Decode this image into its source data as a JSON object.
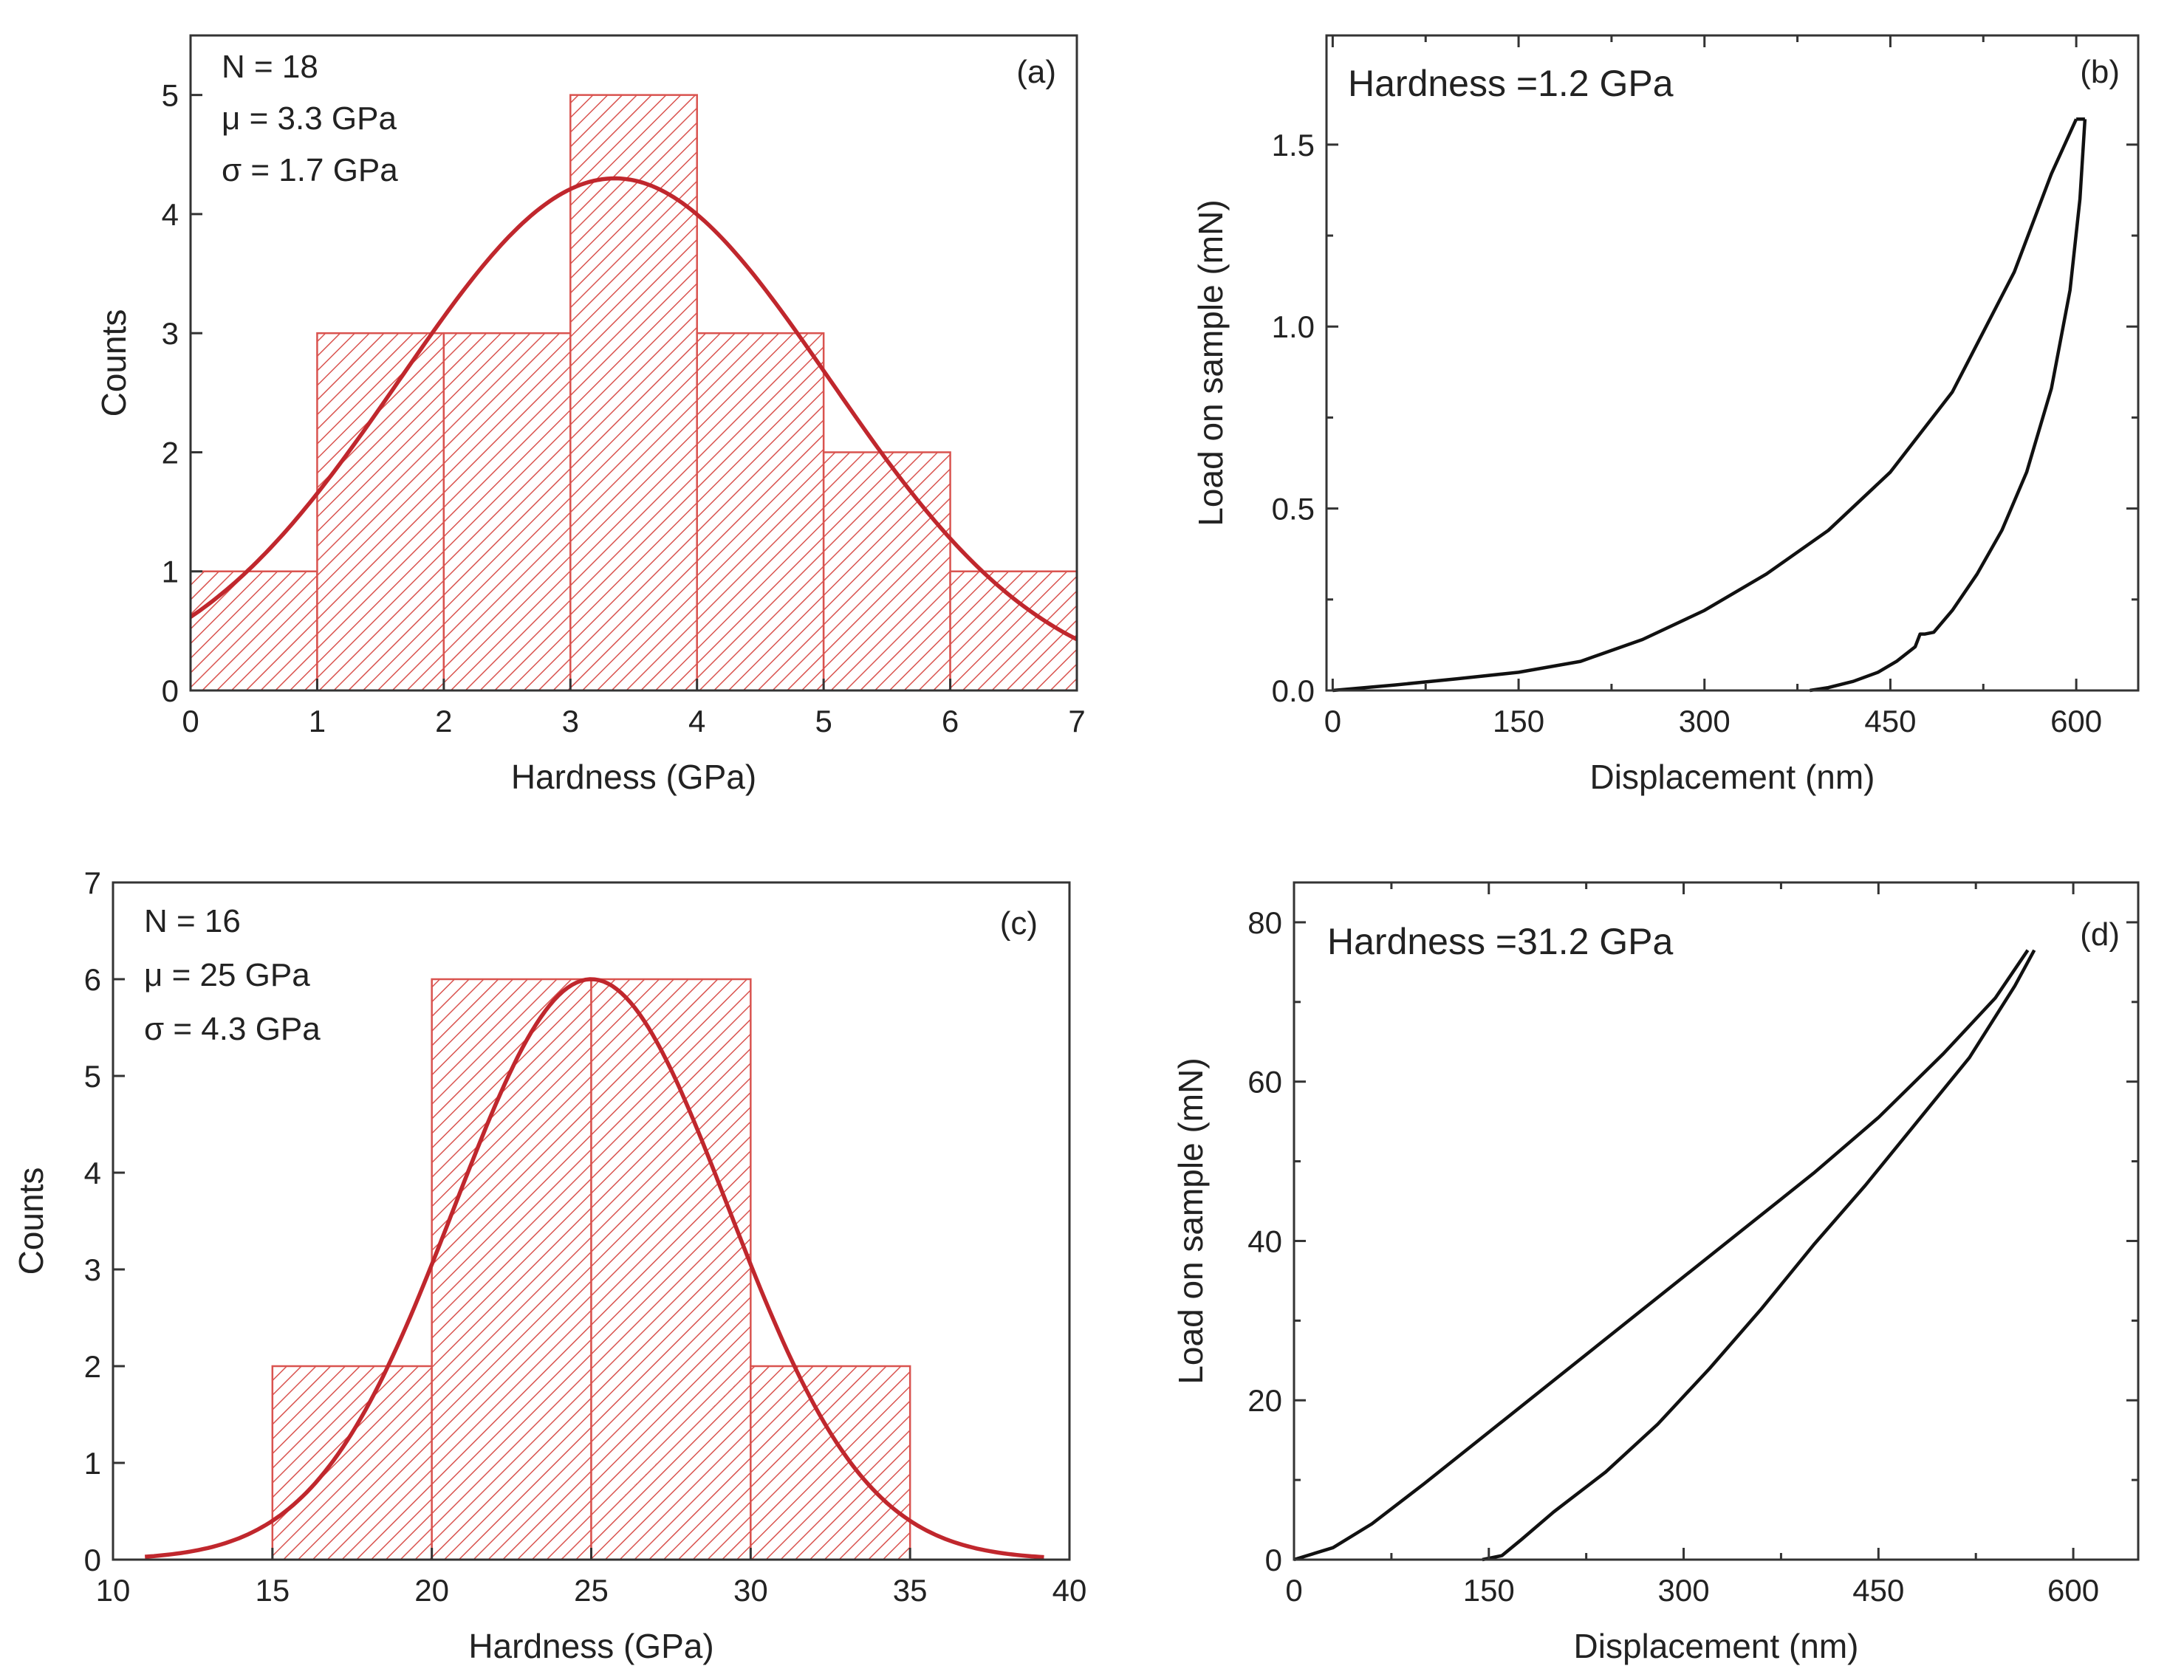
{
  "chart_data": [
    {
      "type": "bar",
      "panel": "(a)",
      "xlabel": "Hardness (GPa)",
      "ylabel": "Counts",
      "xlim": [
        0,
        7
      ],
      "ylim": [
        0,
        5.5
      ],
      "xticks": [
        0,
        1,
        2,
        3,
        4,
        5,
        6,
        7
      ],
      "yticks": [
        0,
        1,
        2,
        3,
        4,
        5
      ],
      "bins": [
        {
          "from": 0,
          "to": 1,
          "count": 1
        },
        {
          "from": 1,
          "to": 2,
          "count": 3
        },
        {
          "from": 2,
          "to": 3,
          "count": 3
        },
        {
          "from": 3,
          "to": 4,
          "count": 5
        },
        {
          "from": 4,
          "to": 5,
          "count": 3
        },
        {
          "from": 5,
          "to": 6,
          "count": 2
        },
        {
          "from": 6,
          "to": 7,
          "count": 1
        }
      ],
      "fit": {
        "type": "gaussian",
        "mean": 3.35,
        "sigma": 1.7,
        "peak": 4.3,
        "x_range": [
          0,
          7
        ]
      },
      "annotations": [
        "N = 18",
        "μ = 3.3 GPa",
        "σ = 1.7 GPa"
      ],
      "bar_color": "#d9534f",
      "fit_color": "#c0272d"
    },
    {
      "type": "line",
      "panel": "(b)",
      "title": "Hardness =1.2 GPa",
      "xlabel": "Displacement (nm)",
      "ylabel": "Load on sample (mN)",
      "xlim": [
        -5,
        650
      ],
      "ylim": [
        0,
        1.8
      ],
      "xticks": [
        0,
        150,
        300,
        450,
        600
      ],
      "yticks": [
        "0.0",
        "0.5",
        "1.0",
        "1.5"
      ],
      "series": [
        {
          "name": "loading",
          "x": [
            0,
            50,
            100,
            150,
            200,
            250,
            300,
            350,
            400,
            450,
            500,
            550,
            580,
            600
          ],
          "y": [
            0,
            0.015,
            0.032,
            0.05,
            0.08,
            0.14,
            0.22,
            0.32,
            0.44,
            0.6,
            0.82,
            1.15,
            1.42,
            1.57
          ]
        },
        {
          "name": "hold",
          "x": [
            600,
            607
          ],
          "y": [
            1.57,
            1.57
          ]
        },
        {
          "name": "unloading",
          "x": [
            607,
            603,
            595,
            580,
            560,
            540,
            520,
            500,
            485,
            478,
            474,
            470,
            455,
            440,
            420,
            400,
            385
          ],
          "y": [
            1.57,
            1.35,
            1.1,
            0.83,
            0.6,
            0.44,
            0.32,
            0.22,
            0.16,
            0.155,
            0.155,
            0.12,
            0.08,
            0.05,
            0.025,
            0.008,
            0
          ]
        }
      ]
    },
    {
      "type": "bar",
      "panel": "(c)",
      "xlabel": "Hardness (GPa)",
      "ylabel": "Counts",
      "xlim": [
        10,
        40
      ],
      "ylim": [
        0,
        7
      ],
      "xticks": [
        10,
        15,
        20,
        25,
        30,
        35,
        40
      ],
      "yticks": [
        0,
        1,
        2,
        3,
        4,
        5,
        6,
        7
      ],
      "bins": [
        {
          "from": 15,
          "to": 20,
          "count": 2
        },
        {
          "from": 20,
          "to": 25,
          "count": 6
        },
        {
          "from": 25,
          "to": 30,
          "count": 6
        },
        {
          "from": 30,
          "to": 35,
          "count": 2
        }
      ],
      "fit": {
        "type": "gaussian",
        "mean": 25,
        "sigma": 4.3,
        "peak": 6.0,
        "x_range": [
          11,
          39.2
        ]
      },
      "annotations": [
        "N = 16",
        "μ = 25 GPa",
        "σ = 4.3 GPa"
      ],
      "bar_color": "#d9534f",
      "fit_color": "#c0272d"
    },
    {
      "type": "line",
      "panel": "(d)",
      "title": "Hardness =31.2 GPa",
      "xlabel": "Displacement (nm)",
      "ylabel": "Load on sample (mN)",
      "xlim": [
        0,
        650
      ],
      "ylim": [
        0,
        85
      ],
      "xticks": [
        0,
        150,
        300,
        450,
        600
      ],
      "yticks": [
        0,
        20,
        40,
        60,
        80
      ],
      "series": [
        {
          "name": "loading",
          "x": [
            0,
            30,
            60,
            100,
            150,
            200,
            250,
            300,
            350,
            400,
            450,
            500,
            540,
            565
          ],
          "y": [
            0,
            1.5,
            4.5,
            9.5,
            16,
            22.5,
            29,
            35.5,
            42,
            48.5,
            55.5,
            63.5,
            70.5,
            76.5
          ]
        },
        {
          "name": "unloading",
          "x": [
            570,
            555,
            520,
            480,
            440,
            400,
            360,
            320,
            280,
            240,
            200,
            175,
            160,
            145
          ],
          "y": [
            76.5,
            72,
            63,
            55,
            47,
            39.5,
            31.5,
            24,
            17,
            11,
            6,
            2.5,
            0.5,
            0
          ]
        }
      ]
    }
  ]
}
